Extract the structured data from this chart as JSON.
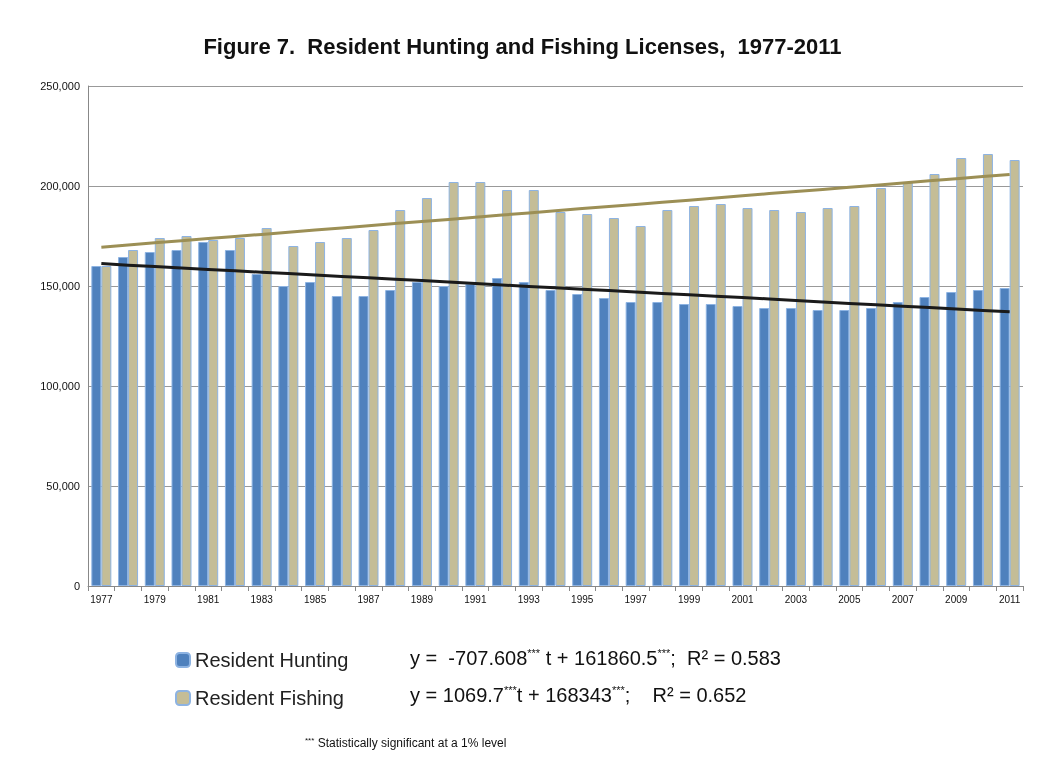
{
  "chart_data": {
    "type": "bar",
    "title": "Figure 7.  Resident Hunting and Fishing Licenses,  1977-2011",
    "categories": [
      "1977",
      null,
      "1979",
      null,
      "1981",
      null,
      "1983",
      null,
      "1985",
      null,
      "1987",
      null,
      "1989",
      null,
      "1991",
      null,
      "1993",
      null,
      "1995",
      null,
      "1997",
      null,
      "1999",
      null,
      "2001",
      null,
      "2003",
      null,
      "2005",
      null,
      "2007",
      null,
      "2009",
      null,
      "2011"
    ],
    "series": [
      {
        "name": "Resident Hunting",
        "color": "#4f81bd",
        "values": [
          160000,
          164500,
          167000,
          168000,
          172000,
          168000,
          156000,
          150000,
          152000,
          145000,
          145000,
          148000,
          152000,
          150000,
          151000,
          154000,
          152000,
          148000,
          146000,
          144000,
          142000,
          142000,
          141000,
          141000,
          140000,
          139000,
          139000,
          138000,
          138000,
          139000,
          142000,
          144500,
          147000,
          148000,
          149000
        ]
      },
      {
        "name": "Resident Fishing",
        "color": "#c4bd97",
        "values": [
          160000,
          168000,
          174000,
          175000,
          173000,
          174000,
          179000,
          170000,
          172000,
          174000,
          178000,
          188000,
          194000,
          202000,
          202000,
          198000,
          198000,
          187000,
          186000,
          184000,
          180000,
          188000,
          190000,
          191000,
          189000,
          188000,
          187000,
          189000,
          190000,
          199000,
          202000,
          206000,
          214000,
          216000,
          213000
        ]
      },
      {
        "type": "line",
        "color": "#1a1a1a",
        "values": [
          161200,
          160400,
          159700,
          159000,
          158300,
          157600,
          156900,
          156200,
          155500,
          154800,
          154100,
          153400,
          152700,
          152000,
          151200,
          150500,
          149800,
          149100,
          148400,
          147700,
          147000,
          146300,
          145600,
          144900,
          144200,
          143500,
          142800,
          142000,
          141300,
          140600,
          139900,
          139200,
          138500,
          137800,
          137100
        ]
      },
      {
        "type": "line",
        "color": "#9c8f55",
        "values": [
          169400,
          170500,
          171600,
          172600,
          173700,
          174800,
          175800,
          176900,
          178000,
          179000,
          180100,
          181200,
          182200,
          183300,
          184400,
          185500,
          186500,
          187600,
          188700,
          189700,
          190800,
          191900,
          192900,
          194000,
          195100,
          196200,
          197200,
          198300,
          199400,
          200400,
          201500,
          202600,
          203600,
          204700,
          205800
        ]
      }
    ],
    "ylim": [
      0,
      250000
    ],
    "yticks": [
      0,
      {
        "value": 50000,
        "label": "50,000"
      },
      {
        "value": 100000,
        "label": "100,000"
      },
      {
        "value": 150000,
        "label": "150,000"
      },
      {
        "value": 200000,
        "label": "200,000"
      },
      {
        "value": 250000,
        "label": "250,000"
      }
    ],
    "grid": "y",
    "legend": "bottom",
    "annotations": [
      "y =  -707.608$^{***}$ t + 161860.5$^{***}$;  R² = 0.583",
      "y = 1069.7$^{***}$t + 168343$^{***}$;    R² = 0.652",
      "$^{***}$ Statistically significant at a 1% level"
    ]
  }
}
